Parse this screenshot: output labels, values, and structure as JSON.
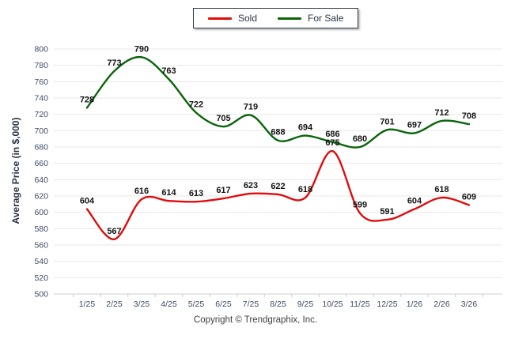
{
  "chart_data": {
    "type": "line",
    "title": "",
    "ylabel": "Average Price (in $,000)",
    "xlabel": "",
    "categories": [
      "1/25",
      "2/25",
      "3/25",
      "4/25",
      "5/25",
      "6/25",
      "7/25",
      "8/25",
      "9/25",
      "10/25",
      "11/25",
      "12/25",
      "1/26",
      "2/26",
      "3/26"
    ],
    "series": [
      {
        "name": "Sold",
        "color": "#e00c0c",
        "values": [
          604,
          567,
          616,
          614,
          613,
          617,
          623,
          622,
          618,
          675,
          599,
          591,
          604,
          618,
          609
        ]
      },
      {
        "name": "For Sale",
        "color": "#0a640a",
        "values": [
          728,
          773,
          790,
          763,
          722,
          705,
          719,
          688,
          694,
          686,
          680,
          701,
          697,
          712,
          708
        ]
      }
    ],
    "ylim": [
      500,
      800
    ],
    "ytick_step": 20,
    "grid": true,
    "legend_position": "top-center",
    "point_labels": true
  },
  "footer": {
    "copyright": "Copyright © Trendgraphix, Inc."
  },
  "colors": {
    "sold_line": "#e00c0c",
    "for_sale_line": "#0a640a",
    "gridline": "#e8e8e8",
    "axis_line": "#cfcfcf",
    "x_tick_mark": "#c9ccd3",
    "tick_text": "#3e4a66",
    "data_label_text": "#141414",
    "legend_border": "#2e3b4e",
    "axis_title_text": "#2a3342",
    "copyright_text": "#3f3f3f"
  }
}
